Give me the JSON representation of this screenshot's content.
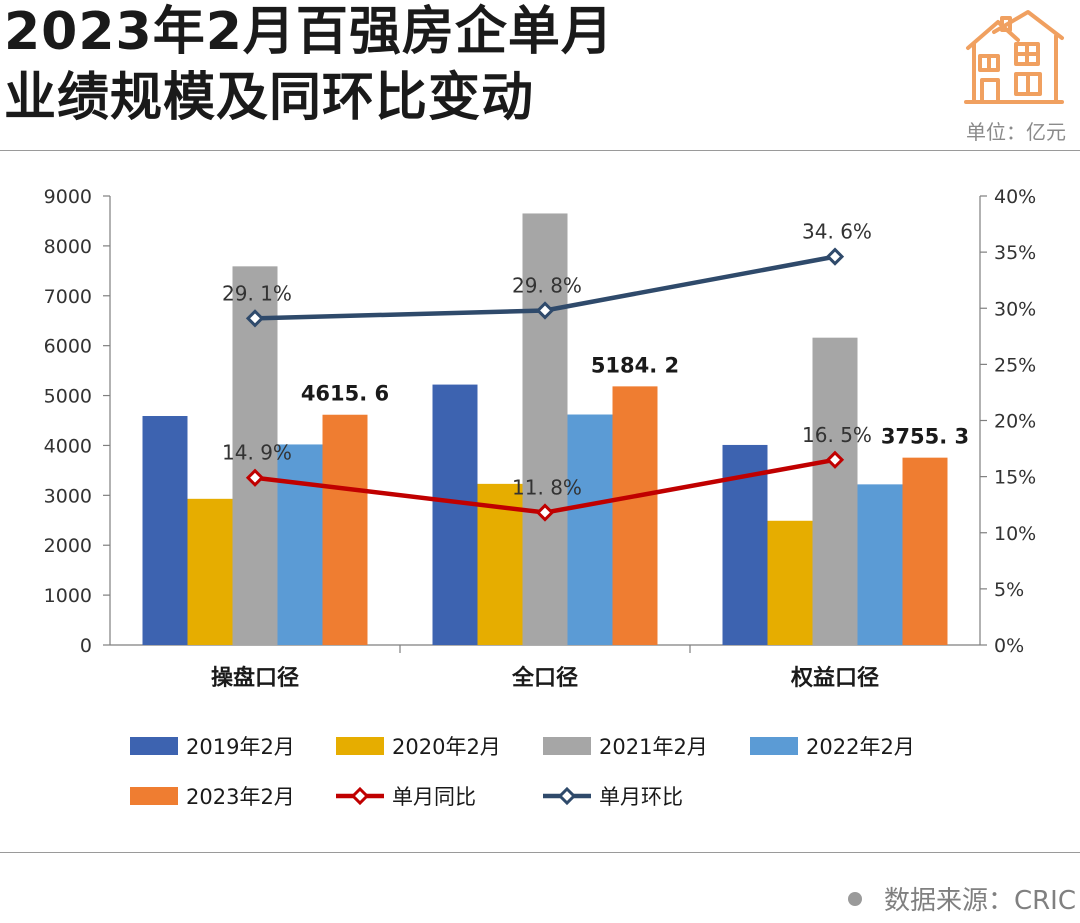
{
  "header": {
    "title_line1": "2023年2月百强房企单月",
    "title_line2": "业绩规模及同环比变动",
    "unit": "单位：亿元"
  },
  "footer": {
    "source": "数据来源：CRIC"
  },
  "colors": {
    "accent_icon": "#f0a060",
    "y2019": "#3d63b0",
    "y2020": "#e6ad00",
    "y2021": "#a6a6a6",
    "y2022": "#5b9bd5",
    "y2023": "#ef7d31",
    "yoy": "#c00000",
    "mom": "#2f4a6b"
  },
  "icon": "house-icon",
  "chart_data": {
    "type": "bar",
    "categories": [
      "操盘口径",
      "全口径",
      "权益口径"
    ],
    "ylim": [
      0,
      9000
    ],
    "yticks": [
      "0",
      "1000",
      "2000",
      "3000",
      "4000",
      "5000",
      "6000",
      "7000",
      "8000",
      "9000"
    ],
    "y2lim": [
      0,
      40
    ],
    "y2ticks": [
      "0%",
      "5%",
      "10%",
      "15%",
      "20%",
      "25%",
      "30%",
      "35%",
      "40%"
    ],
    "series": [
      {
        "name": "2019年2月",
        "values": [
          4590,
          5220,
          4010
        ]
      },
      {
        "name": "2020年2月",
        "values": [
          2930,
          3230,
          2490
        ]
      },
      {
        "name": "2021年2月",
        "values": [
          7590,
          8650,
          6160
        ]
      },
      {
        "name": "2022年2月",
        "values": [
          4020,
          4620,
          3220
        ]
      },
      {
        "name": "2023年2月",
        "values": [
          4615.6,
          5184.2,
          3755.3
        ],
        "labels": [
          "4615. 6",
          "5184. 2",
          "3755. 3"
        ]
      }
    ],
    "lines": [
      {
        "name": "单月同比",
        "values": [
          14.9,
          11.8,
          16.5
        ],
        "labels": [
          "14. 9%",
          "11. 8%",
          "16. 5%"
        ]
      },
      {
        "name": "单月环比",
        "values": [
          29.1,
          29.8,
          34.6
        ],
        "labels": [
          "29. 1%",
          "29. 8%",
          "34. 6%"
        ]
      }
    ],
    "legend_position": "bottom",
    "grid": false
  }
}
